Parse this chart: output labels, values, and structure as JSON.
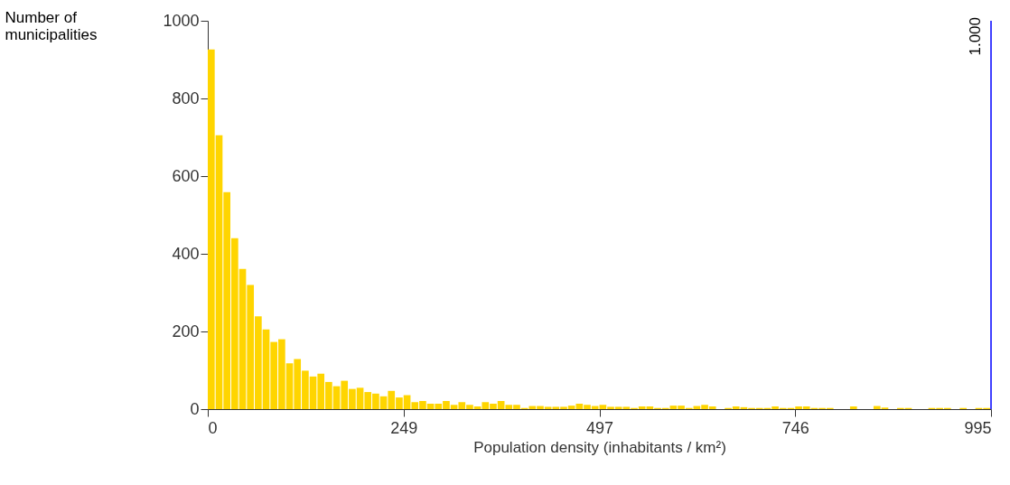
{
  "chart_data": {
    "type": "histogram",
    "xlabel": "Population density (inhabitants / km²)",
    "ylabel": "Number of municipalities",
    "bins": [
      0,
      9.95,
      19.9,
      29.85,
      39.8,
      49.75,
      59.7,
      69.65,
      79.6,
      89.55,
      99.5,
      109.45,
      119.4,
      129.35,
      139.3,
      149.25,
      159.2,
      169.15,
      179.1,
      189.05,
      199,
      208.95,
      218.9,
      228.85,
      238.8,
      248.75,
      258.7,
      268.65,
      278.6,
      288.55,
      298.5,
      308.45,
      318.4,
      328.35,
      338.3,
      348.25,
      358.2,
      368.15,
      378.1,
      388.05,
      398,
      407.95,
      417.9,
      427.85,
      437.8,
      447.75,
      457.7,
      467.65,
      477.6,
      487.55,
      497.5,
      507.45,
      517.4,
      527.35,
      537.3,
      547.25,
      557.2,
      567.15,
      577.1,
      587.05,
      597,
      606.95,
      616.9,
      626.85,
      636.8,
      646.75,
      656.7,
      666.65,
      676.6,
      686.55,
      696.5,
      706.45,
      716.4,
      726.35,
      736.3,
      746.25,
      756.2,
      766.15,
      776.1,
      786.05,
      796,
      805.95,
      815.9,
      825.85,
      835.8,
      845.75,
      855.7,
      865.65,
      875.6,
      885.55,
      895.5,
      905.45,
      915.4,
      925.35,
      935.3,
      945.25,
      955.2,
      965.15,
      975.1,
      985.05,
      995
    ],
    "values": [
      926,
      705,
      559,
      440,
      361,
      320,
      239,
      205,
      173,
      180,
      118,
      129,
      99,
      84,
      91,
      70,
      59,
      73,
      52,
      55,
      44,
      40,
      33,
      47,
      30,
      36,
      18,
      21,
      14,
      14,
      21,
      11,
      18,
      11,
      7,
      18,
      14,
      21,
      11,
      11,
      3,
      8,
      8,
      6,
      6,
      6,
      9,
      14,
      11,
      8,
      11,
      6,
      6,
      6,
      3,
      7,
      7,
      3,
      3,
      9,
      9,
      3,
      8,
      11,
      7,
      0,
      3,
      7,
      5,
      3,
      3,
      3,
      7,
      3,
      3,
      7,
      7,
      3,
      3,
      3,
      0,
      0,
      7,
      0,
      0,
      8,
      4,
      0,
      3,
      3,
      0,
      0,
      3,
      3,
      3,
      0,
      3,
      0,
      3,
      3
    ],
    "color": "#ffd500",
    "xlim": [
      0,
      995
    ],
    "xticks": [
      0,
      {
        "value": 248.75,
        "label": "249"
      },
      {
        "value": 497.5,
        "label": "497"
      },
      {
        "value": 746.25,
        "label": "746"
      },
      995
    ],
    "ylim": [
      0,
      1000
    ],
    "yticks": [
      0,
      200,
      400,
      600,
      800,
      1000
    ],
    "ref_lines": [
      {
        "axis": "x",
        "value": 995,
        "color": "#4040ff"
      }
    ],
    "annotations": [
      {
        "text": "1.000",
        "x": 995
      }
    ],
    "grid": false
  }
}
